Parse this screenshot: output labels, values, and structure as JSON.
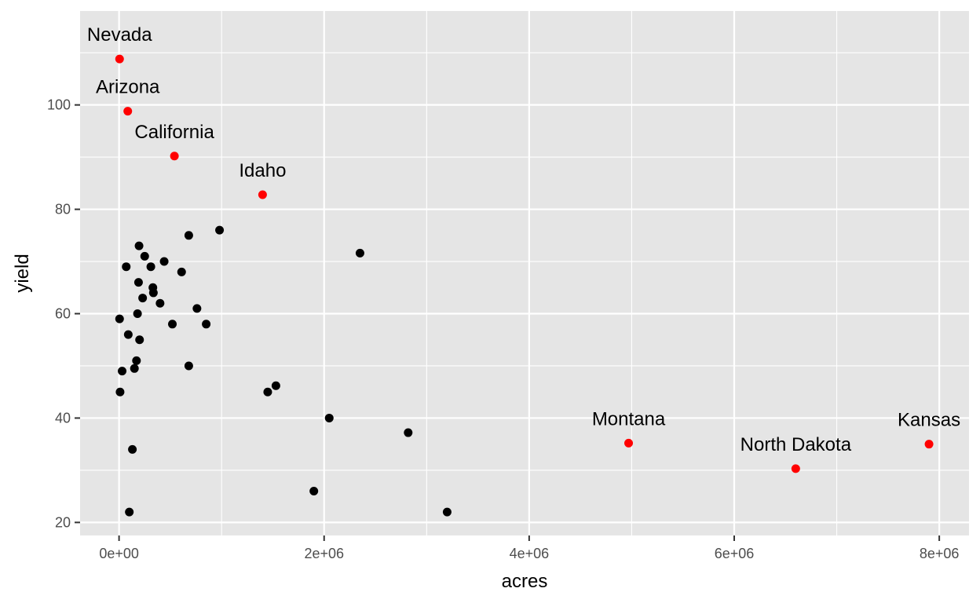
{
  "chart_data": {
    "type": "scatter",
    "title": "",
    "xlabel": "acres",
    "ylabel": "yield",
    "xlim": [
      -380000,
      8290000
    ],
    "ylim": [
      17.5,
      118
    ],
    "x_ticks": [
      0,
      2000000,
      4000000,
      6000000,
      8000000
    ],
    "x_tick_labels": [
      "0e+00",
      "2e+06",
      "4e+06",
      "6e+06",
      "8e+06"
    ],
    "x_minor_ticks": [
      1000000,
      3000000,
      5000000,
      7000000
    ],
    "y_ticks": [
      20,
      40,
      60,
      80,
      100
    ],
    "y_tick_labels": [
      "20",
      "40",
      "60",
      "80",
      "100"
    ],
    "y_minor_ticks": [
      30,
      50,
      70,
      90,
      110
    ],
    "grid": true,
    "colors": {
      "panel_background": "#e5e5e5",
      "grid": "#ffffff",
      "default_point": "#000000",
      "highlight_point": "#ff0000"
    },
    "series": [
      {
        "color": "#000000",
        "points": [
          {
            "x": 5000,
            "y": 59
          },
          {
            "x": 10000,
            "y": 45
          },
          {
            "x": 30000,
            "y": 49
          },
          {
            "x": 70000,
            "y": 69
          },
          {
            "x": 90000,
            "y": 56
          },
          {
            "x": 100000,
            "y": 22
          },
          {
            "x": 130000,
            "y": 34
          },
          {
            "x": 150000,
            "y": 49.5
          },
          {
            "x": 170000,
            "y": 51
          },
          {
            "x": 180000,
            "y": 60
          },
          {
            "x": 190000,
            "y": 66
          },
          {
            "x": 195000,
            "y": 73
          },
          {
            "x": 200000,
            "y": 55
          },
          {
            "x": 230000,
            "y": 63
          },
          {
            "x": 250000,
            "y": 71
          },
          {
            "x": 310000,
            "y": 69
          },
          {
            "x": 330000,
            "y": 65
          },
          {
            "x": 335000,
            "y": 64
          },
          {
            "x": 400000,
            "y": 62
          },
          {
            "x": 440000,
            "y": 70
          },
          {
            "x": 520000,
            "y": 58
          },
          {
            "x": 610000,
            "y": 68
          },
          {
            "x": 680000,
            "y": 75
          },
          {
            "x": 680000,
            "y": 50
          },
          {
            "x": 760000,
            "y": 61
          },
          {
            "x": 850000,
            "y": 58
          },
          {
            "x": 980000,
            "y": 76
          },
          {
            "x": 1450000,
            "y": 45
          },
          {
            "x": 1530000,
            "y": 46.2
          },
          {
            "x": 1900000,
            "y": 26
          },
          {
            "x": 2050000,
            "y": 40
          },
          {
            "x": 2350000,
            "y": 71.6
          },
          {
            "x": 2820000,
            "y": 37.2
          },
          {
            "x": 3200000,
            "y": 22
          }
        ]
      },
      {
        "color": "#ff0000",
        "points": [
          {
            "x": 5000,
            "y": 108.8,
            "label": "Nevada"
          },
          {
            "x": 85000,
            "y": 98.8,
            "label": "Arizona"
          },
          {
            "x": 540000,
            "y": 90.2,
            "label": "California"
          },
          {
            "x": 1400000,
            "y": 82.8,
            "label": "Idaho"
          },
          {
            "x": 4970000,
            "y": 35.2,
            "label": "Montana"
          },
          {
            "x": 6600000,
            "y": 30.3,
            "label": "North Dakota"
          },
          {
            "x": 7900000,
            "y": 35,
            "label": "Kansas"
          }
        ]
      }
    ]
  }
}
